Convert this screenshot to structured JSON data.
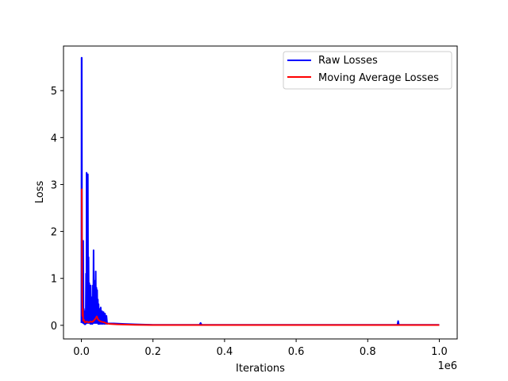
{
  "chart_data": {
    "type": "line",
    "title": "",
    "xlabel": "Iterations",
    "ylabel": "Loss",
    "x_offset_label": "1e6",
    "xlim": [
      -0.05,
      1.05
    ],
    "ylim": [
      -0.29,
      5.95
    ],
    "x_ticks": [
      0.0,
      0.2,
      0.4,
      0.6,
      0.8,
      1.0
    ],
    "x_tick_labels": [
      "0.0",
      "0.2",
      "0.4",
      "0.6",
      "0.8",
      "1.0"
    ],
    "y_ticks": [
      0,
      1,
      2,
      3,
      4,
      5
    ],
    "y_tick_labels": [
      "0",
      "1",
      "2",
      "3",
      "4",
      "5"
    ],
    "grid": false,
    "legend_position": "top-right",
    "series": [
      {
        "name": "Raw Losses",
        "color": "#0000ff",
        "points": [
          [
            0.0,
            0.05
          ],
          [
            0.0005,
            5.7
          ],
          [
            0.001,
            5.7
          ],
          [
            0.002,
            0.1
          ],
          [
            0.003,
            0.65
          ],
          [
            0.004,
            0.05
          ],
          [
            0.005,
            1.8
          ],
          [
            0.006,
            0.05
          ],
          [
            0.007,
            0.35
          ],
          [
            0.008,
            0.03
          ],
          [
            0.009,
            0.3
          ],
          [
            0.01,
            0.02
          ],
          [
            0.011,
            0.28
          ],
          [
            0.012,
            0.03
          ],
          [
            0.013,
            1.1
          ],
          [
            0.014,
            0.05
          ],
          [
            0.0145,
            3.25
          ],
          [
            0.015,
            0.1
          ],
          [
            0.016,
            1.3
          ],
          [
            0.017,
            0.05
          ],
          [
            0.018,
            3.22
          ],
          [
            0.019,
            0.05
          ],
          [
            0.02,
            1.45
          ],
          [
            0.021,
            0.05
          ],
          [
            0.022,
            0.9
          ],
          [
            0.023,
            0.05
          ],
          [
            0.024,
            0.5
          ],
          [
            0.025,
            0.03
          ],
          [
            0.026,
            0.85
          ],
          [
            0.027,
            0.05
          ],
          [
            0.028,
            0.35
          ],
          [
            0.029,
            0.03
          ],
          [
            0.03,
            0.6
          ],
          [
            0.031,
            0.03
          ],
          [
            0.032,
            0.85
          ],
          [
            0.033,
            0.05
          ],
          [
            0.034,
            1.6
          ],
          [
            0.035,
            0.05
          ],
          [
            0.036,
            0.95
          ],
          [
            0.037,
            0.05
          ],
          [
            0.038,
            0.7
          ],
          [
            0.039,
            0.05
          ],
          [
            0.04,
            1.15
          ],
          [
            0.041,
            0.05
          ],
          [
            0.042,
            0.8
          ],
          [
            0.043,
            0.05
          ],
          [
            0.044,
            0.75
          ],
          [
            0.045,
            0.05
          ],
          [
            0.046,
            0.55
          ],
          [
            0.047,
            0.03
          ],
          [
            0.048,
            0.45
          ],
          [
            0.049,
            0.03
          ],
          [
            0.05,
            0.35
          ],
          [
            0.052,
            0.03
          ],
          [
            0.054,
            0.38
          ],
          [
            0.056,
            0.03
          ],
          [
            0.058,
            0.3
          ],
          [
            0.06,
            0.03
          ],
          [
            0.062,
            0.28
          ],
          [
            0.064,
            0.03
          ],
          [
            0.066,
            0.25
          ],
          [
            0.068,
            0.03
          ],
          [
            0.07,
            0.2
          ],
          [
            0.072,
            0.03
          ],
          [
            0.075,
            0.04
          ],
          [
            0.09,
            0.04
          ],
          [
            0.12,
            0.03
          ],
          [
            0.15,
            0.02
          ],
          [
            0.2,
            0.01
          ],
          [
            0.33,
            0.01
          ],
          [
            0.333,
            0.05
          ],
          [
            0.336,
            0.01
          ],
          [
            0.5,
            0.01
          ],
          [
            0.7,
            0.01
          ],
          [
            0.883,
            0.01
          ],
          [
            0.885,
            0.09
          ],
          [
            0.887,
            0.01
          ],
          [
            1.0,
            0.01
          ]
        ]
      },
      {
        "name": "Moving Average Losses",
        "color": "#ff0000",
        "points": [
          [
            0.0,
            2.9
          ],
          [
            0.001,
            2.9
          ],
          [
            0.002,
            0.65
          ],
          [
            0.003,
            0.2
          ],
          [
            0.004,
            0.35
          ],
          [
            0.005,
            0.1
          ],
          [
            0.007,
            0.12
          ],
          [
            0.01,
            0.06
          ],
          [
            0.015,
            0.08
          ],
          [
            0.02,
            0.06
          ],
          [
            0.025,
            0.08
          ],
          [
            0.03,
            0.07
          ],
          [
            0.035,
            0.1
          ],
          [
            0.04,
            0.15
          ],
          [
            0.043,
            0.19
          ],
          [
            0.046,
            0.13
          ],
          [
            0.05,
            0.1
          ],
          [
            0.055,
            0.08
          ],
          [
            0.06,
            0.07
          ],
          [
            0.065,
            0.06
          ],
          [
            0.07,
            0.04
          ],
          [
            0.08,
            0.03
          ],
          [
            0.1,
            0.02
          ],
          [
            0.15,
            0.01
          ],
          [
            0.2,
            0.005
          ],
          [
            0.4,
            0.005
          ],
          [
            0.6,
            0.005
          ],
          [
            0.8,
            0.005
          ],
          [
            1.0,
            0.005
          ]
        ]
      }
    ]
  }
}
